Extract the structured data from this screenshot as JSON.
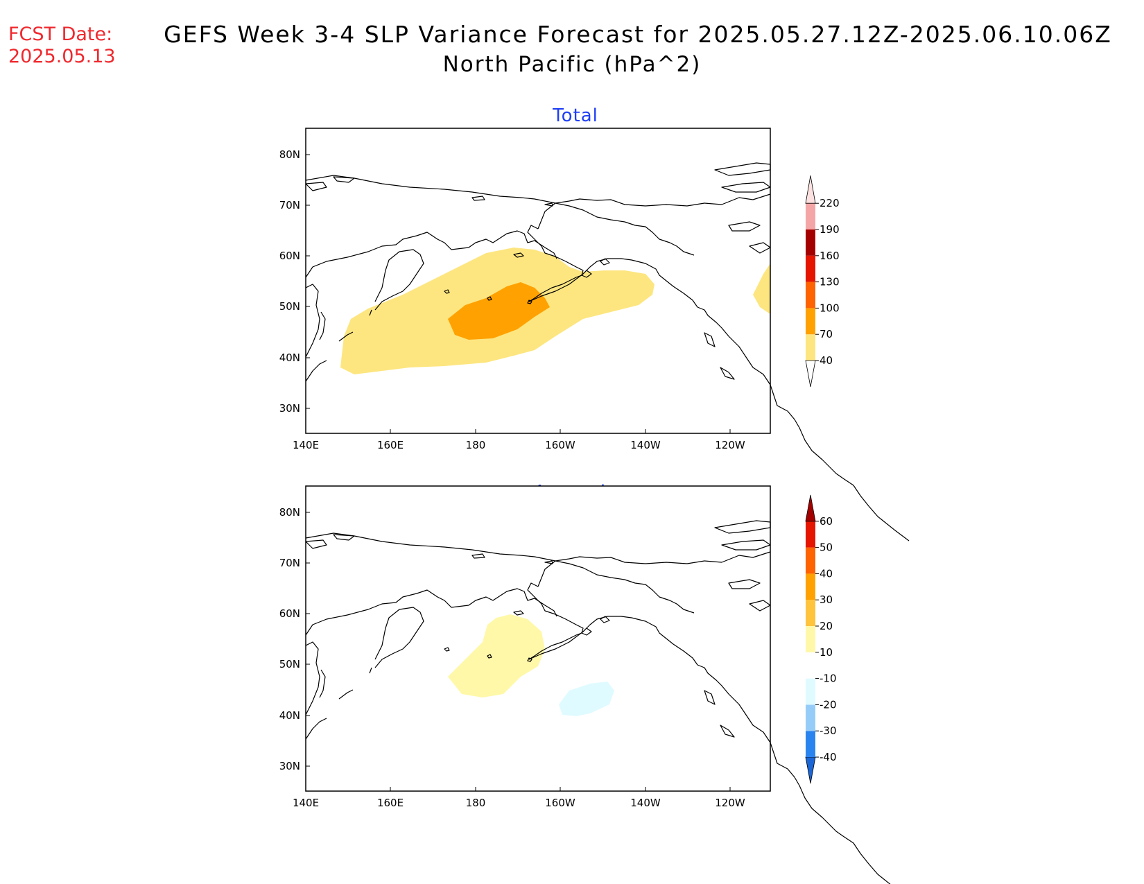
{
  "header": {
    "fcst_label": "FCST Date:",
    "fcst_date": "2025.05.13",
    "title": "GEFS Week 3-4 SLP Variance Forecast for 2025.05.27.12Z-2025.06.10.06Z",
    "subtitle": "North Pacific (hPa^2)"
  },
  "panels": {
    "total": {
      "title": "Total"
    },
    "anomaly": {
      "title": "Anomaly"
    }
  },
  "axes": {
    "lat_ticks": [
      "80N",
      "70N",
      "60N",
      "50N",
      "40N",
      "30N"
    ],
    "lon_ticks": [
      "140E",
      "160E",
      "180",
      "160W",
      "140W",
      "120W"
    ]
  },
  "colorbars": {
    "total": {
      "labels": [
        "40",
        "70",
        "100",
        "130",
        "160",
        "190",
        "220"
      ],
      "colors": [
        "#fde680",
        "#ffa100",
        "#ff6200",
        "#e51500",
        "#a50000",
        "#f4a6a6",
        "#fde1e1"
      ]
    },
    "anomaly": {
      "labels": [
        "-40",
        "-30",
        "-20",
        "-10",
        "10",
        "20",
        "30",
        "40",
        "50",
        "60"
      ],
      "colors": [
        "#1a66d6",
        "#2a84ef",
        "#96cdf8",
        "#e0fbff",
        "#ffffff",
        "#fff8a8",
        "#ffc33c",
        "#ffa100",
        "#ff6200",
        "#e51500",
        "#a50000"
      ]
    }
  }
}
